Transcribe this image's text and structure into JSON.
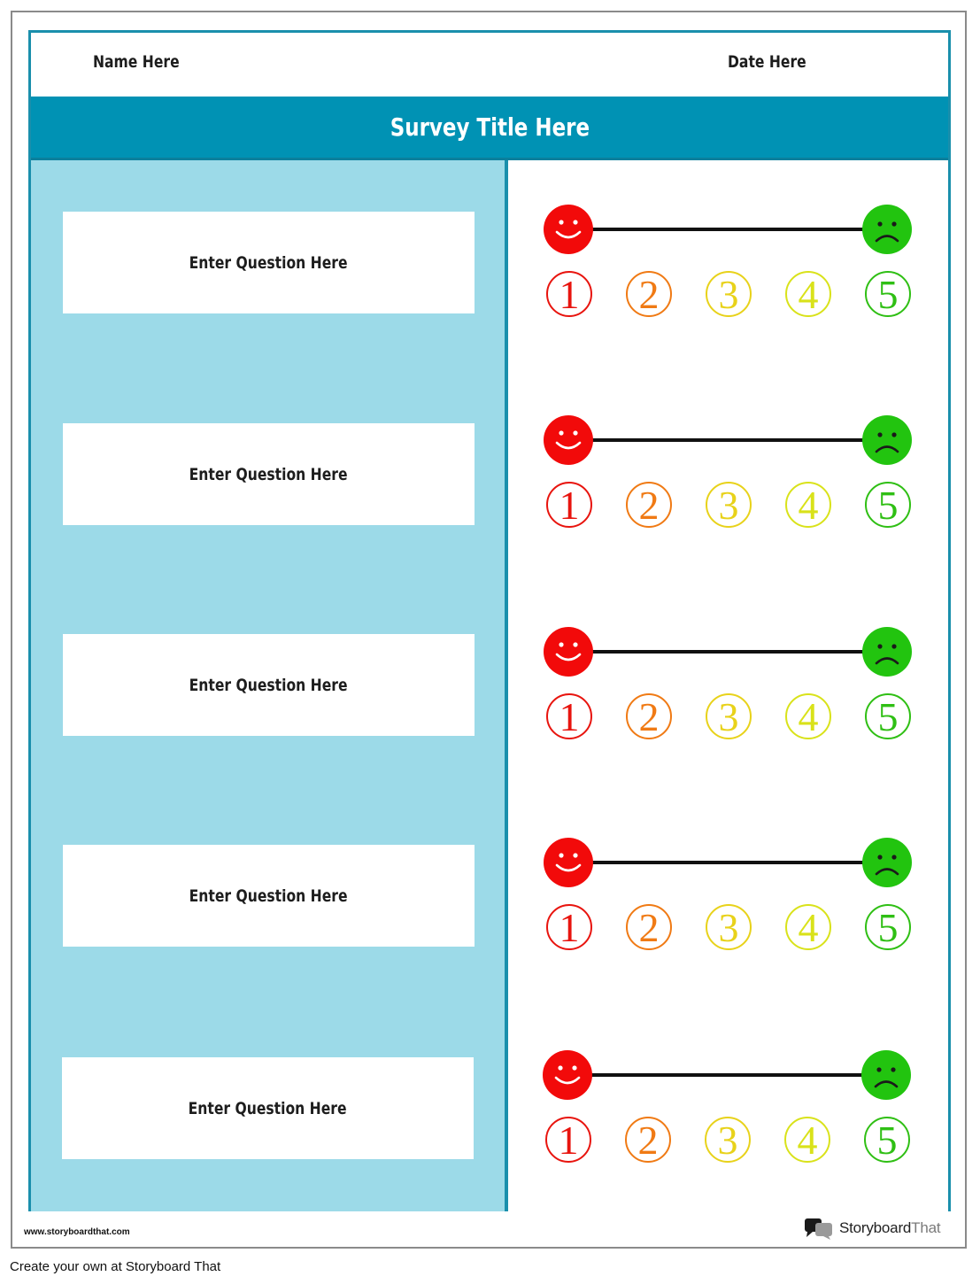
{
  "header": {
    "name_label": "Name Here",
    "date_label": "Date Here"
  },
  "survey": {
    "title": "Survey Title Here"
  },
  "questions": [
    {
      "label": "Enter Question Here"
    },
    {
      "label": "Enter Question Here"
    },
    {
      "label": "Enter Question Here"
    },
    {
      "label": "Enter Question Here"
    },
    {
      "label": "Enter Question Here"
    }
  ],
  "rating_scale": {
    "values": [
      "1",
      "2",
      "3",
      "4",
      "5"
    ],
    "colors": [
      "#e8140e",
      "#f07a14",
      "#e8d21a",
      "#d9e21a",
      "#2fbf14"
    ],
    "left_face": {
      "icon": "smiley-face-icon",
      "color": "#f20a0a"
    },
    "right_face": {
      "icon": "frowning-face-icon",
      "color": "#22c40f"
    }
  },
  "footer": {
    "url": "www.storyboardthat.com",
    "brand_part1": "Storyboard",
    "brand_part2": "That",
    "brand_icon": "storyboard-that-logo-icon",
    "caption": "Create your own at Storyboard That"
  }
}
